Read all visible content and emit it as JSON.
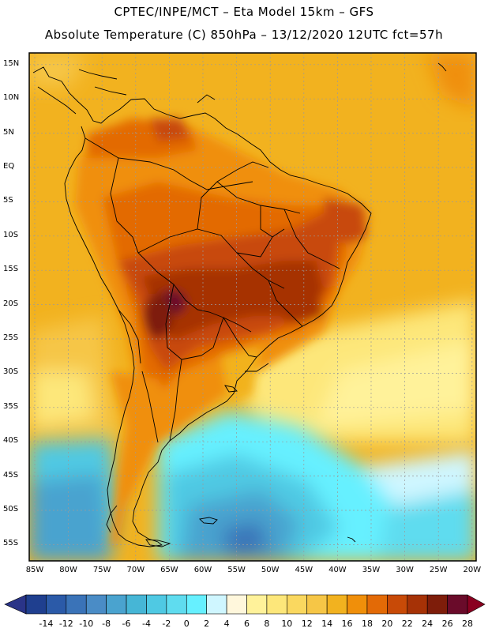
{
  "header": {
    "line1": "CPTEC/INPE/MCT –  Eta Model 15km – GFS",
    "line2": "Absolute Temperature (C) 850hPa – 13/12/2020 12UTC fct=57h"
  },
  "map": {
    "latitude_labels": [
      "15N",
      "10N",
      "5N",
      "EQ",
      "5S",
      "10S",
      "15S",
      "20S",
      "25S",
      "30S",
      "35S",
      "40S",
      "45S",
      "50S",
      "55S"
    ],
    "longitude_labels": [
      "85W",
      "80W",
      "75W",
      "70W",
      "65W",
      "60W",
      "55W",
      "50W",
      "45W",
      "40W",
      "35W",
      "30W",
      "25W",
      "20W"
    ],
    "lat_values": [
      15,
      10,
      5,
      0,
      -5,
      -10,
      -15,
      -20,
      -25,
      -30,
      -35,
      -40,
      -45,
      -50,
      -55
    ],
    "lon_values": [
      -85,
      -80,
      -75,
      -70,
      -65,
      -60,
      -55,
      -50,
      -45,
      -40,
      -35,
      -30,
      -25,
      -20
    ]
  },
  "colorbar": {
    "labels": [
      "-14",
      "-12",
      "-10",
      "-8",
      "-6",
      "-4",
      "-2",
      "0",
      "2",
      "4",
      "6",
      "8",
      "10",
      "12",
      "14",
      "16",
      "18",
      "20",
      "22",
      "24",
      "26",
      "28"
    ],
    "colors": [
      "#1f3f8f",
      "#2b5aa8",
      "#3a73b8",
      "#4a8cc6",
      "#4aa3cf",
      "#46b6d6",
      "#4fc9e3",
      "#5fdcef",
      "#66f0ff",
      "#cff6ff",
      "#fff7dc",
      "#fff29a",
      "#fde77a",
      "#fad85f",
      "#f6c646",
      "#f2b21f",
      "#f08f0a",
      "#e36a06",
      "#c84a07",
      "#a63206",
      "#7e1d0a",
      "#6a0b2a"
    ],
    "under_color": "#2a3488",
    "over_color": "#8a0020"
  },
  "palette": {
    "ocean_north": "#f2b21f",
    "ocean_south_warm": "#fde77a",
    "cold_sea": "#5fdcef",
    "cold_deep": "#3a73b8",
    "hot_land": "#c84a07",
    "hottest": "#7e1d0a",
    "coast": "#000000"
  }
}
